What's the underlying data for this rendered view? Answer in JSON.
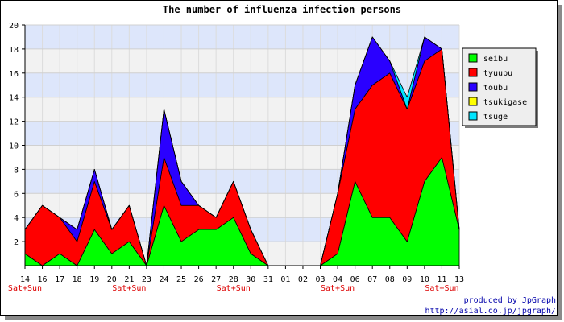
{
  "chart_data": {
    "type": "area",
    "stacked": true,
    "title": "The number of influenza infection persons",
    "categories": [
      "14",
      "16",
      "17",
      "18",
      "19",
      "20",
      "21",
      "23",
      "24",
      "25",
      "26",
      "27",
      "28",
      "30",
      "31",
      "01",
      "02",
      "03",
      "04",
      "06",
      "07",
      "08",
      "09",
      "10",
      "11",
      "13"
    ],
    "weekend_marks": [
      {
        "index": 0,
        "label": "Sat+Sun"
      },
      {
        "index": 6,
        "label": "Sat+Sun"
      },
      {
        "index": 12,
        "label": "Sat+Sun"
      },
      {
        "index": 18,
        "label": "Sat+Sun"
      },
      {
        "index": 24,
        "label": "Sat+Sun"
      }
    ],
    "ylim": [
      0,
      20
    ],
    "yticks": [
      2,
      4,
      6,
      8,
      10,
      12,
      14,
      16,
      18,
      20
    ],
    "grid": true,
    "legend_position": "right",
    "series": [
      {
        "name": "seibu",
        "color": "#00ff00",
        "values": [
          1,
          0,
          1,
          0,
          3,
          1,
          2,
          0,
          5,
          2,
          3,
          3,
          4,
          1,
          0,
          0,
          0,
          0,
          1,
          7,
          4,
          4,
          2,
          7,
          9,
          3
        ]
      },
      {
        "name": "tyuubu",
        "color": "#ff0000",
        "values": [
          2,
          5,
          3,
          2,
          4,
          2,
          3,
          0,
          4,
          3,
          2,
          1,
          3,
          2,
          0,
          0,
          0,
          0,
          5,
          6,
          11,
          12,
          11,
          10,
          9,
          0
        ]
      },
      {
        "name": "toubu",
        "color": "#2a00ff",
        "values": [
          0,
          0,
          0,
          1,
          1,
          0,
          0,
          0,
          4,
          2,
          0,
          0,
          0,
          0,
          0,
          0,
          0,
          0,
          0,
          2,
          4,
          1,
          0,
          2,
          0,
          0
        ]
      },
      {
        "name": "tsukigase",
        "color": "#ffff00",
        "values": [
          0,
          0,
          0,
          0,
          0,
          0,
          0,
          0,
          0,
          0,
          0,
          0,
          0,
          0,
          0,
          0,
          0,
          0,
          0,
          0,
          0,
          0,
          0,
          0,
          0,
          0
        ]
      },
      {
        "name": "tsuge",
        "color": "#00e5ff",
        "values": [
          0,
          0,
          0,
          0,
          0,
          0,
          0,
          0,
          0,
          0,
          0,
          0,
          0,
          0,
          0,
          0,
          0,
          0,
          0,
          0,
          0,
          0,
          1,
          0,
          0,
          0
        ]
      }
    ],
    "credits": [
      "produced by JpGraph",
      "http://asial.co.jp/jpgraph/"
    ]
  }
}
